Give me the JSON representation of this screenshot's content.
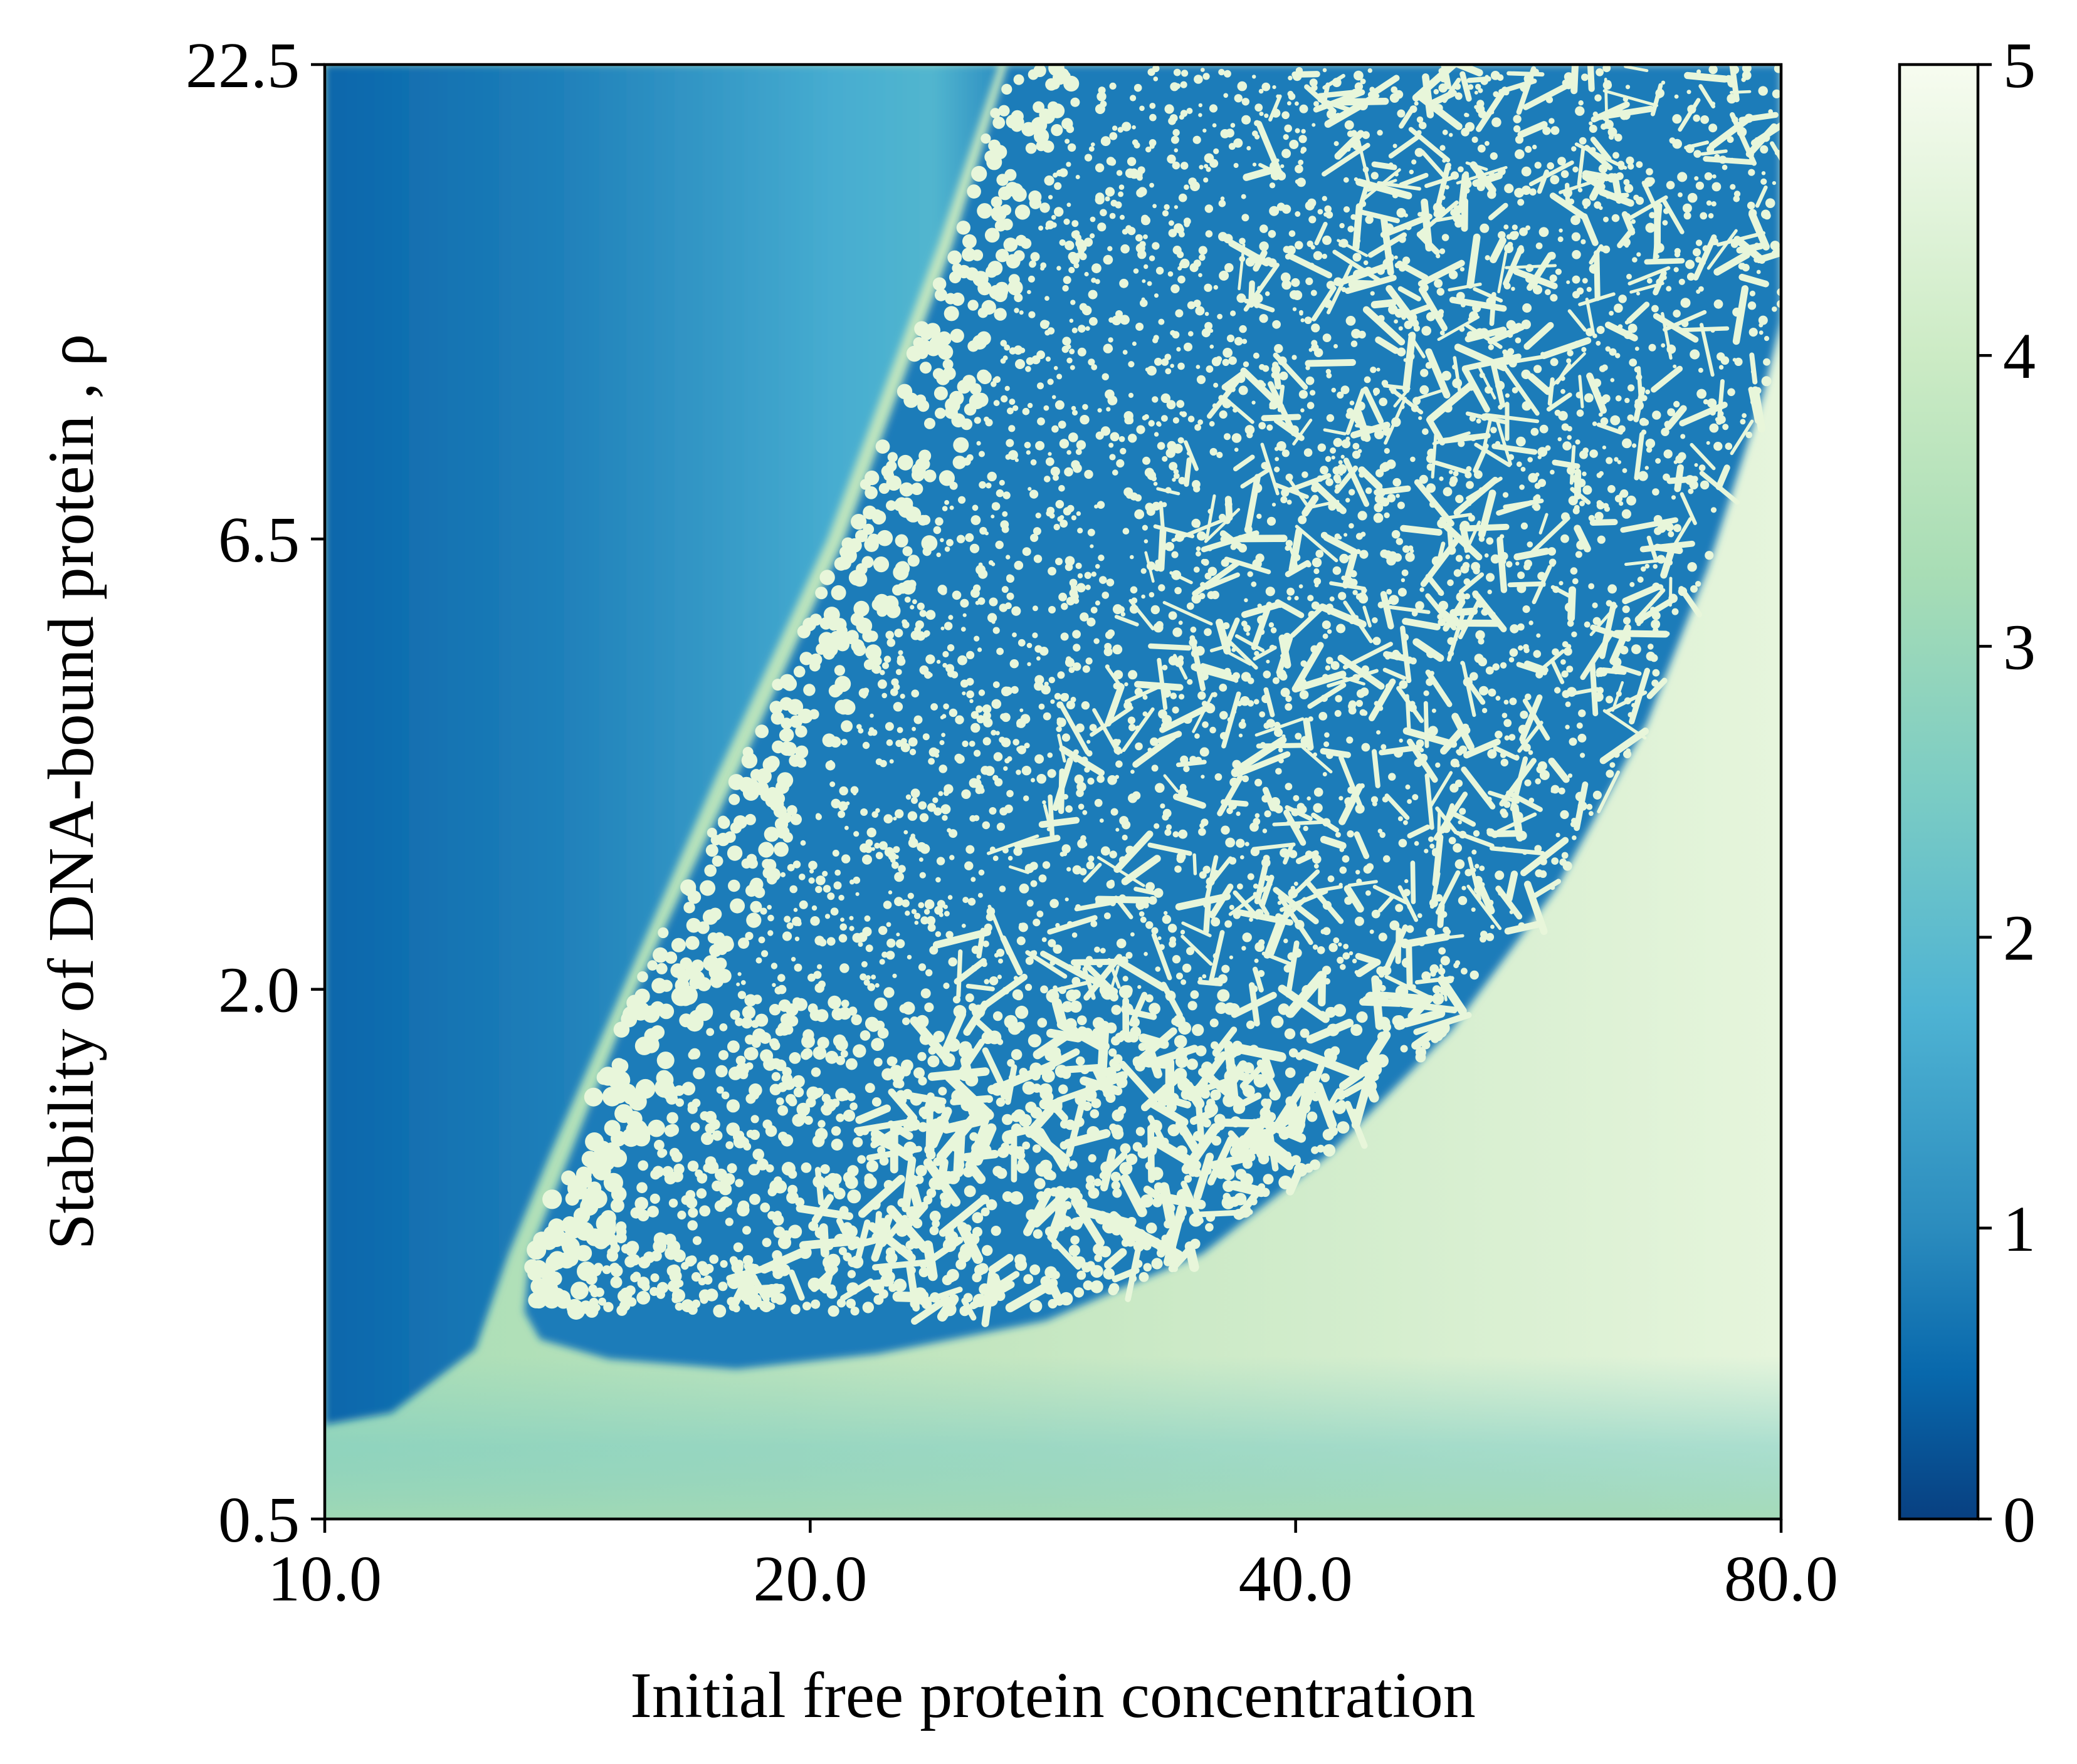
{
  "chart_data": {
    "type": "heatmap",
    "title": "",
    "xlabel": "Initial free protein concentration",
    "ylabel": "Stability of DNA-bound protein , ρ",
    "x_ticks": [
      "10.0",
      "20.0",
      "40.0",
      "80.0"
    ],
    "y_ticks": [
      "0.5",
      "2.0",
      "6.5",
      "22.5"
    ],
    "xlim": [
      10.0,
      80.0
    ],
    "ylim": [
      0.5,
      22.5
    ],
    "x_scale": "log",
    "y_scale": "log",
    "colorbar": {
      "range": [
        0,
        5
      ],
      "ticks": [
        "0",
        "1",
        "2",
        "3",
        "4",
        "5"
      ],
      "colormap": "GnBu_r",
      "colors": [
        "#08589e",
        "#2b8cbe",
        "#4eb3d3",
        "#7bccc4",
        "#a8ddb5",
        "#ccebc5",
        "#f7fcf0"
      ]
    },
    "regions": [
      {
        "name": "",
        "description": "",
        "x_range": [
          10.0,
          27.0
        ],
        "y_range": [
          0.9,
          22.5
        ],
        "value_range": [
          0.5,
          2.2
        ]
      },
      {
        "name": "",
        "description": "",
        "x_range": [
          14.0,
          80.0
        ],
        "y_range": [
          0.9,
          22.5
        ],
        "background_value": 1.4,
        "spot_value": 4.8
      },
      {
        "name": "",
        "description": "",
        "x_range": [
          10.0,
          80.0
        ],
        "y_range": [
          0.5,
          4.0
        ],
        "value_range": [
          3.0,
          4.8
        ]
      }
    ],
    "grid": false
  }
}
